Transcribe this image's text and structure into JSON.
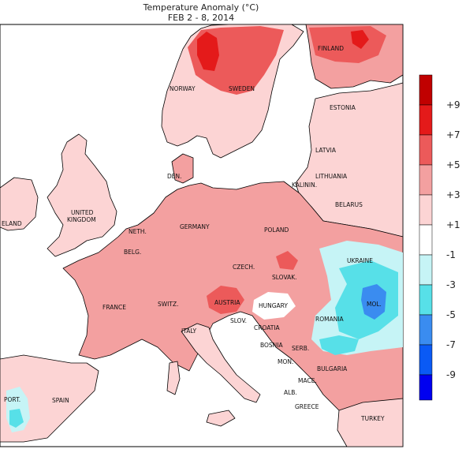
{
  "title": {
    "line1": "Temperature Anomaly (°C)",
    "line2": "FEB 2 - 8, 2014"
  },
  "colors": {
    "sea": "#ffffff",
    "land_outline": "#000000",
    "plus_1_3": "#fcd4d4",
    "plus_3_5": "#f3a0a0",
    "plus_5_7": "#ec5a5a",
    "plus_7_9": "#e41a1a",
    "plus_9": "#c00000",
    "minus_1_3": "#c6f4f6",
    "minus_3_5": "#57e0e8",
    "minus_5_7": "#3a8cf0",
    "minus_7_9": "#0a5af5",
    "minus_9": "#0000f0"
  },
  "legend": {
    "labels": [
      "+9",
      "+7",
      "+5",
      "+3",
      "+1",
      "-1",
      "-3",
      "-5",
      "-7",
      "-9"
    ]
  },
  "countries": {
    "finland": "FINLAND",
    "norway": "NORWAY",
    "sweden": "SWEDEN",
    "estonia": "ESTONIA",
    "latvia": "LATVIA",
    "lithuania": "LITHUANIA",
    "kalinin": "KALININ.",
    "belarus": "BELARUS",
    "den": "DEN.",
    "united": "UNITED",
    "kingdom": "KINGDOM",
    "ireland": "ELAND",
    "neth": "NETH.",
    "belg": "BELG.",
    "germany": "GERMANY",
    "poland": "POLAND",
    "ukraine": "UKRAINE",
    "czech": "CZECH.",
    "slovak": "SLOVAK.",
    "mol": "MOL.",
    "france": "FRANCE",
    "switz": "SWITZ.",
    "austria": "AUSTRIA",
    "hungary": "HUNGARY",
    "romania": "ROMANIA",
    "slov": "SLOV.",
    "croatia": "CROATIA",
    "italy": "ITALY",
    "bosnia": "BOSNIA",
    "serb": "SERB.",
    "mon": "MON.",
    "bulgaria": "BULGARIA",
    "mace": "MACE.",
    "alb": "ALB.",
    "greece": "GREECE",
    "turkey": "TURKEY",
    "port": "PORT.",
    "spain": "SPAIN"
  }
}
